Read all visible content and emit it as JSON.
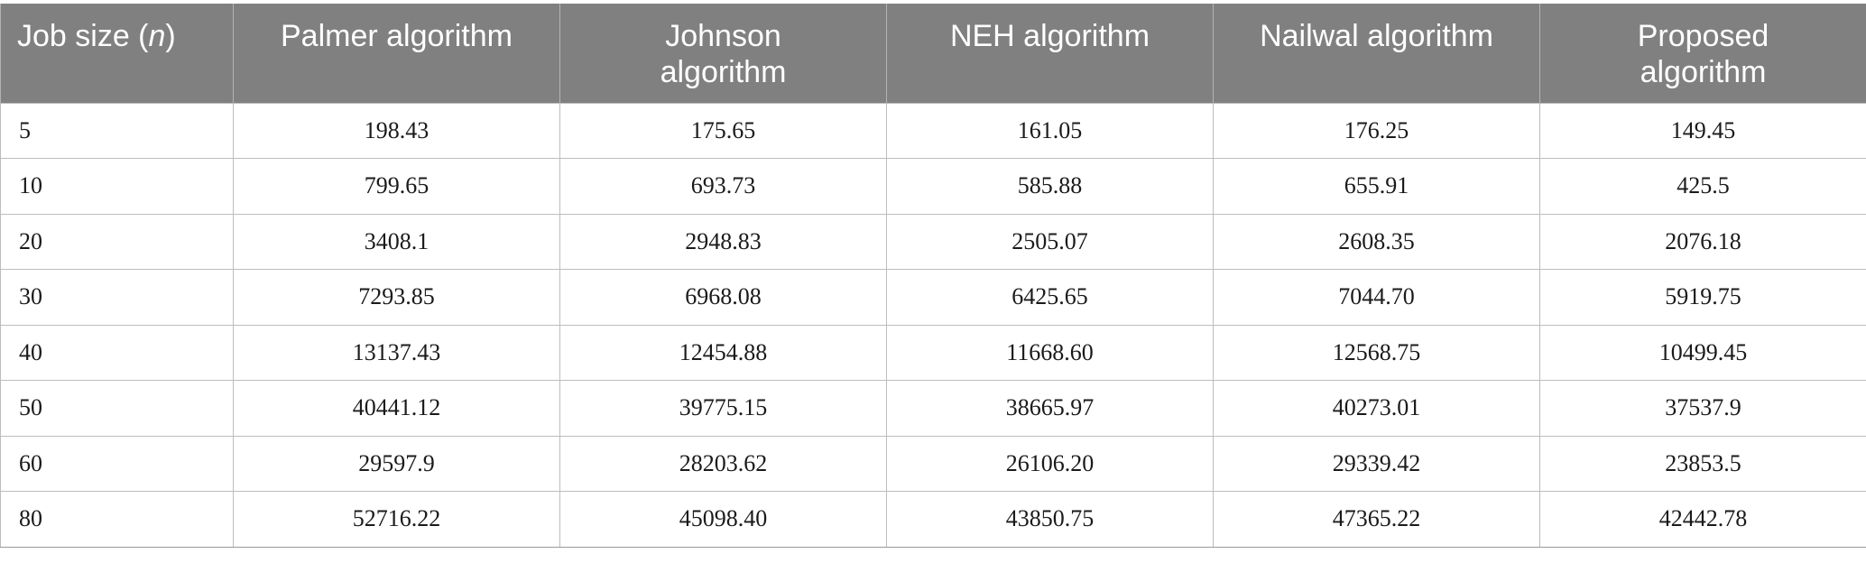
{
  "table": {
    "header": {
      "job_size_prefix": "Job size (",
      "job_size_var": "n",
      "job_size_suffix": ")",
      "palmer": "Palmer algorithm",
      "johnson_line1": "Johnson",
      "johnson_line2": "algorithm",
      "neh": "NEH algorithm",
      "nailwal": "Nailwal algorithm",
      "proposed_line1": "Proposed",
      "proposed_line2": "algorithm"
    },
    "rows": [
      [
        "5",
        "198.43",
        "175.65",
        "161.05",
        "176.25",
        "149.45"
      ],
      [
        "10",
        "799.65",
        "693.73",
        "585.88",
        "655.91",
        "425.5"
      ],
      [
        "20",
        "3408.1",
        "2948.83",
        "2505.07",
        "2608.35",
        "2076.18"
      ],
      [
        "30",
        "7293.85",
        "6968.08",
        "6425.65",
        "7044.70",
        "5919.75"
      ],
      [
        "40",
        "13137.43",
        "12454.88",
        "11668.60",
        "12568.75",
        "10499.45"
      ],
      [
        "50",
        "40441.12",
        "39775.15",
        "38665.97",
        "40273.01",
        "37537.9"
      ],
      [
        "60",
        "29597.9",
        "28203.62",
        "26106.20",
        "29339.42",
        "23853.5"
      ],
      [
        "80",
        "52716.22",
        "45098.40",
        "43850.75",
        "47365.22",
        "42442.78"
      ]
    ]
  }
}
